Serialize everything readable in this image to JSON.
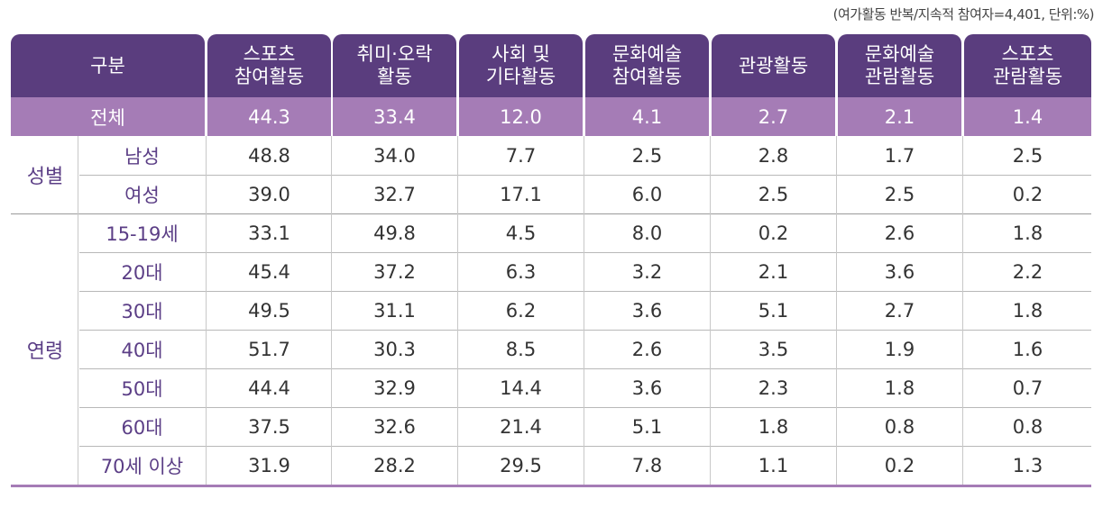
{
  "note": "(여가활동 반복/지속적 참여자=4,401, 단위:%)",
  "header": {
    "category": "구분",
    "columns": [
      "스포츠\n참여활동",
      "취미·오락\n활동",
      "사회 및\n기타활동",
      "문화예술\n참여활동",
      "관광활동",
      "문화예술\n관람활동",
      "스포츠\n관람활동"
    ]
  },
  "total": {
    "label": "전체",
    "values": [
      "44.3",
      "33.4",
      "12.0",
      "4.1",
      "2.7",
      "2.1",
      "1.4"
    ]
  },
  "groups": [
    {
      "label": "성별",
      "rows": [
        {
          "label": "남성",
          "values": [
            "48.8",
            "34.0",
            "7.7",
            "2.5",
            "2.8",
            "1.7",
            "2.5"
          ]
        },
        {
          "label": "여성",
          "values": [
            "39.0",
            "32.7",
            "17.1",
            "6.0",
            "2.5",
            "2.5",
            "0.2"
          ]
        }
      ]
    },
    {
      "label": "연령",
      "rows": [
        {
          "label": "15-19세",
          "values": [
            "33.1",
            "49.8",
            "4.5",
            "8.0",
            "0.2",
            "2.6",
            "1.8"
          ]
        },
        {
          "label": "20대",
          "values": [
            "45.4",
            "37.2",
            "6.3",
            "3.2",
            "2.1",
            "3.6",
            "2.2"
          ]
        },
        {
          "label": "30대",
          "values": [
            "49.5",
            "31.1",
            "6.2",
            "3.6",
            "5.1",
            "2.7",
            "1.8"
          ]
        },
        {
          "label": "40대",
          "values": [
            "51.7",
            "30.3",
            "8.5",
            "2.6",
            "3.5",
            "1.9",
            "1.6"
          ]
        },
        {
          "label": "50대",
          "values": [
            "44.4",
            "32.9",
            "14.4",
            "3.6",
            "2.3",
            "1.8",
            "0.7"
          ]
        },
        {
          "label": "60대",
          "values": [
            "37.5",
            "32.6",
            "21.4",
            "5.1",
            "1.8",
            "0.8",
            "0.8"
          ]
        },
        {
          "label": "70세 이상",
          "values": [
            "31.9",
            "28.2",
            "29.5",
            "7.8",
            "1.1",
            "0.2",
            "1.3"
          ]
        }
      ]
    }
  ]
}
